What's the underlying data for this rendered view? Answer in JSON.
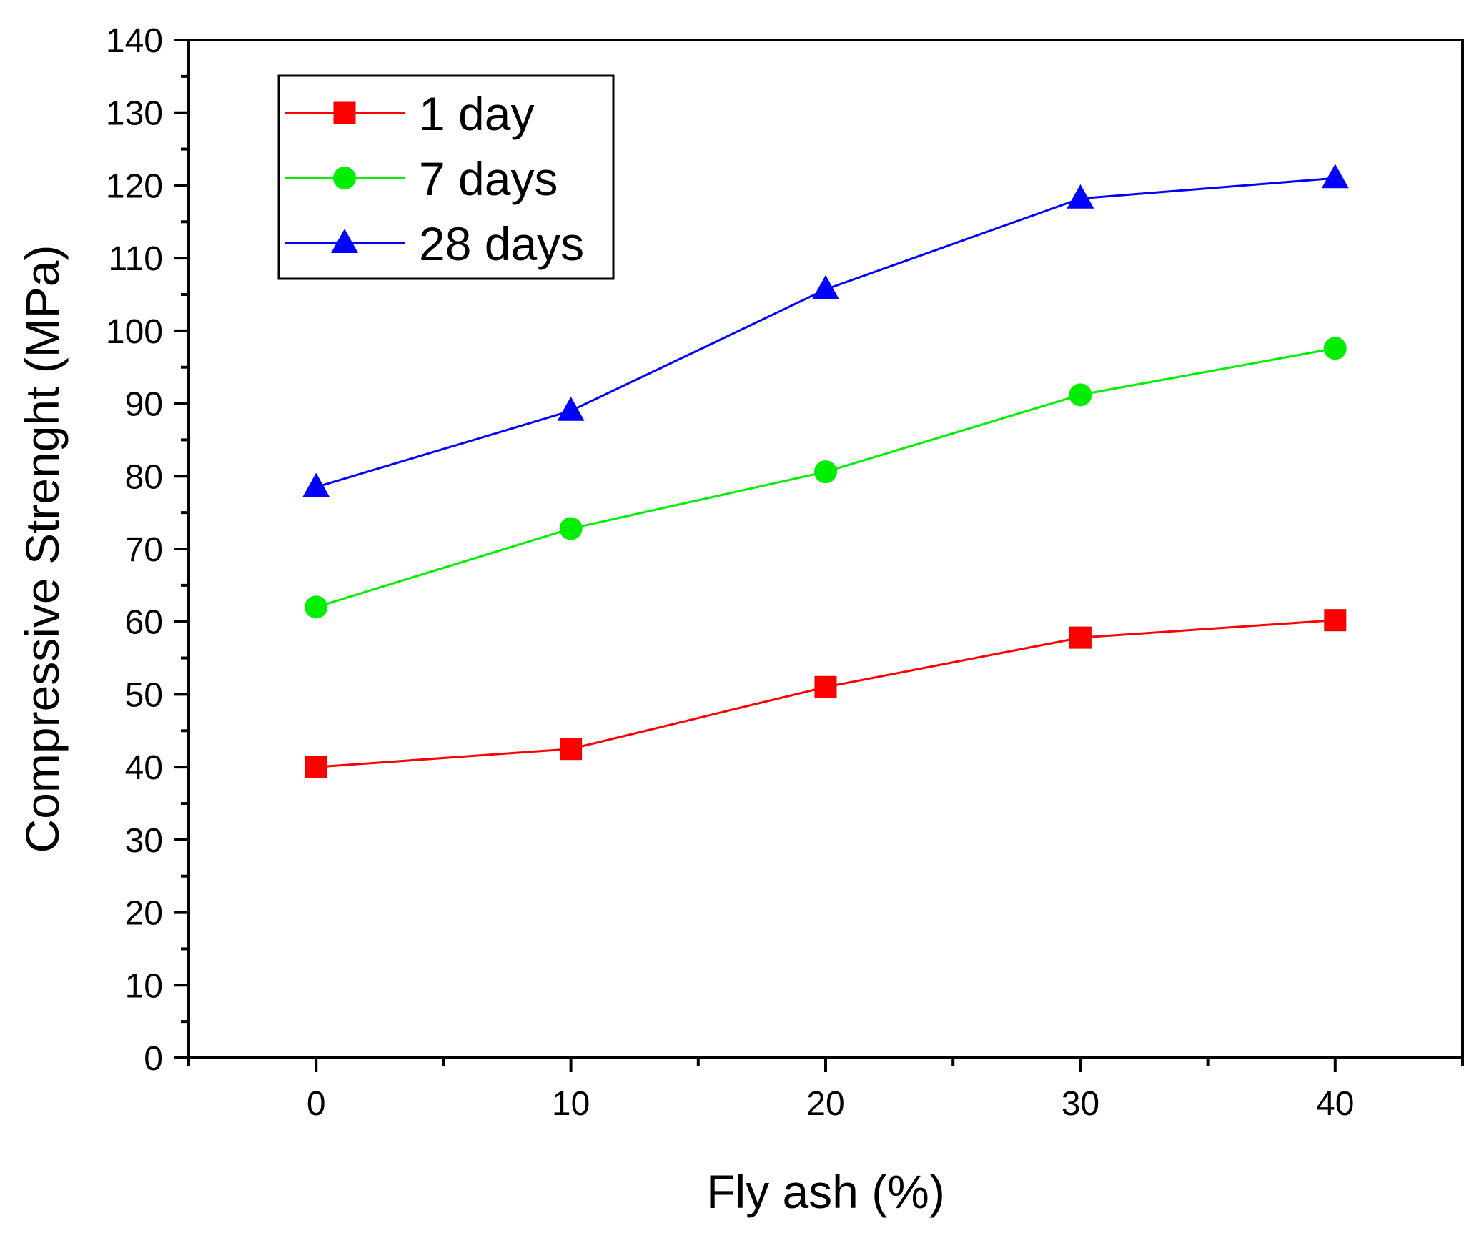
{
  "chart_data": {
    "type": "line",
    "title": "",
    "xlabel": "Fly ash (%)",
    "ylabel": "Compressive Strenght (MPa)",
    "x": [
      0,
      10,
      20,
      30,
      40
    ],
    "xlim": [
      -5,
      45
    ],
    "ylim": [
      0,
      140
    ],
    "xticks": [
      0,
      10,
      20,
      30,
      40
    ],
    "yticks": [
      0,
      10,
      20,
      30,
      40,
      50,
      60,
      70,
      80,
      90,
      100,
      110,
      120,
      130,
      140
    ],
    "xtick_labels": [
      "0",
      "10",
      "20",
      "30",
      "40"
    ],
    "ytick_labels": [
      "0",
      "10",
      "20",
      "30",
      "40",
      "50",
      "60",
      "70",
      "80",
      "90",
      "100",
      "110",
      "120",
      "130",
      "140"
    ],
    "grid": false,
    "legend_position": "top-left",
    "series": [
      {
        "name": "1 day",
        "values": [
          40.0,
          42.5,
          51.0,
          57.8,
          60.2
        ],
        "color": "#ff0000",
        "marker": "square"
      },
      {
        "name": "7 days",
        "values": [
          62.0,
          72.8,
          80.6,
          91.2,
          97.6
        ],
        "color": "#00ee00",
        "marker": "circle"
      },
      {
        "name": "28 days",
        "values": [
          78.5,
          89.0,
          105.7,
          118.2,
          121.0
        ],
        "color": "#0000ff",
        "marker": "triangle"
      }
    ]
  }
}
